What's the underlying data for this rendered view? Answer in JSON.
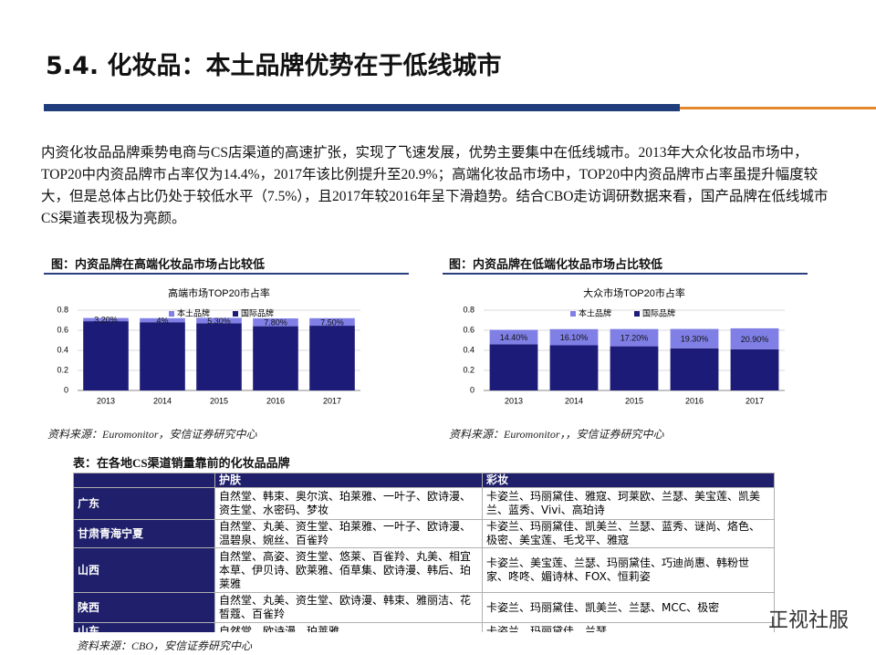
{
  "header": {
    "title": "5.4. 化妆品：本土品牌优势在于低线城市"
  },
  "paragraph": "内资化妆品品牌乘势电商与CS店渠道的高速扩张，实现了飞速发展，优势主要集中在低线城市。2013年大众化妆品市场中，TOP20中内资品牌市占率仅为14.4%，2017年该比例提升至20.9%；高端化妆品市场中，TOP20中内资品牌市占率虽提升幅度较大，但是总体占比仍处于较低水平（7.5%），且2017年较2016年呈下滑趋势。结合CBO走访调研数据来看，国产品牌在低线城市CS渠道表现极为亮颜。",
  "figures": [
    {
      "caption": "图：内资品牌在高端化妆品市场占比较低",
      "source": "资料来源：Euromonitor，安信证券研究中心"
    },
    {
      "caption": "图：内资品牌在低端化妆品市场占比较低",
      "source": "资料来源：Euromonitor，，安信证券研究中心"
    }
  ],
  "chart_data": [
    {
      "type": "bar",
      "stacked": true,
      "title": "高端市场TOP20市占率",
      "categories": [
        "2013",
        "2014",
        "2015",
        "2016",
        "2017"
      ],
      "series": [
        {
          "name": "本土品牌",
          "color": "#7f7fe6",
          "values": [
            0.032,
            0.04,
            0.053,
            0.078,
            0.075
          ],
          "value_labels": [
            "3.20%",
            "4%",
            "5.30%",
            "7.80%",
            "7.50%"
          ]
        },
        {
          "name": "国际品牌",
          "color": "#1c1c78",
          "values": [
            0.69,
            0.68,
            0.67,
            0.64,
            0.645
          ]
        }
      ],
      "ylim": [
        0,
        0.8
      ],
      "yticks": [
        0,
        0.2,
        0.4,
        0.6,
        0.8
      ]
    },
    {
      "type": "bar",
      "stacked": true,
      "title": "大众市场TOP20市占率",
      "categories": [
        "2013",
        "2014",
        "2015",
        "2016",
        "2017"
      ],
      "series": [
        {
          "name": "本土品牌",
          "color": "#7f7fe6",
          "values": [
            0.144,
            0.161,
            0.172,
            0.193,
            0.209
          ],
          "value_labels": [
            "14.40%",
            "16.10%",
            "17.20%",
            "19.30%",
            "20.90%"
          ]
        },
        {
          "name": "国际品牌",
          "color": "#1c1c78",
          "values": [
            0.46,
            0.45,
            0.44,
            0.42,
            0.41
          ]
        }
      ],
      "ylim": [
        0,
        0.8
      ],
      "yticks": [
        0,
        0.2,
        0.4,
        0.6,
        0.8
      ]
    }
  ],
  "table": {
    "caption": "表：在各地CS渠道销量靠前的化妆品品牌",
    "header": [
      "护肤",
      "彩妆"
    ],
    "rows": [
      [
        "广东",
        "自然堂、韩束、奥尔滨、珀莱雅、一叶子、欧诗漫、资生堂、水密码、梦妆",
        "卡姿兰、玛丽黛佳、雅寇、珂莱欧、兰瑟、美宝莲、凯美兰、蓝秀、Vivi、高珀诗"
      ],
      [
        "甘肃青海宁夏",
        "自然堂、丸美、资生堂、珀莱雅、一叶子、欧诗漫、温碧泉、婉丝、百雀羚",
        "卡姿兰、玛丽黛佳、凯美兰、兰瑟、蓝秀、谜尚、烙色、极密、美宝莲、毛戈平、雅寇"
      ],
      [
        "山西",
        "自然堂、高姿、资生堂、悠莱、百雀羚、丸美、相宜本草、伊贝诗、欧莱雅、佰草集、欧诗漫、韩后、珀莱雅",
        "卡姿兰、美宝莲、兰瑟、玛丽黛佳、巧迪尚惠、韩粉世家、咚咚、媚诗林、FOX、恒莉姿"
      ],
      [
        "陕西",
        "自然堂、丸美、资生堂、欧诗漫、韩束、雅丽洁、花皙蔻、百雀羚",
        "卡姿兰、玛丽黛佳、凯美兰、兰瑟、MCC、极密"
      ],
      [
        "山东",
        "自然堂、欧诗漫、珀莱雅、",
        "卡姿兰、玛丽黛佳、兰瑟"
      ]
    ],
    "source": "资料来源：CBO，安信证券研究中心"
  },
  "watermark": "正视社服"
}
